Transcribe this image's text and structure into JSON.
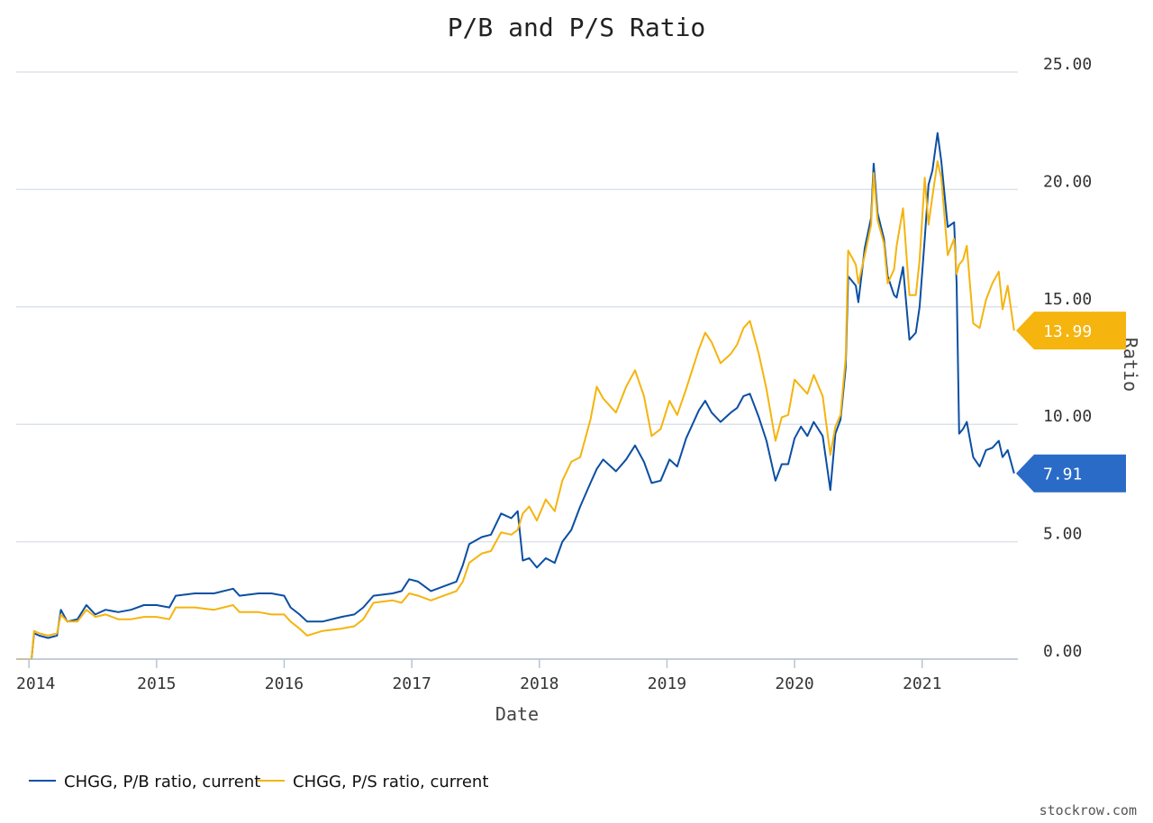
{
  "chart_data": {
    "type": "line",
    "title": "P/B and P/S Ratio",
    "xlabel": "Date",
    "ylabel": "Ratio",
    "ylim": [
      0,
      25
    ],
    "xlim": [
      2013.9,
      2021.75
    ],
    "y_ticks": [
      "0.00",
      "5.00",
      "10.00",
      "15.00",
      "20.00",
      "25.00"
    ],
    "x_ticks": [
      {
        "label": "2014",
        "value": 2014
      },
      {
        "label": "2015",
        "value": 2015
      },
      {
        "label": "2016",
        "value": 2016
      },
      {
        "label": "2017",
        "value": 2017
      },
      {
        "label": "2018",
        "value": 2018
      },
      {
        "label": "2019",
        "value": 2019
      },
      {
        "label": "2020",
        "value": 2020
      },
      {
        "label": "2021",
        "value": 2021
      }
    ],
    "grid": true,
    "legend_position": "bottom-left",
    "series": [
      {
        "name": "CHGG, P/B ratio, current",
        "color": "#0b4fa3",
        "last_label": "7.91",
        "points": [
          [
            2013.9,
            0.0
          ],
          [
            2014.02,
            0.0
          ],
          [
            2014.04,
            1.1
          ],
          [
            2014.08,
            1.0
          ],
          [
            2014.15,
            0.9
          ],
          [
            2014.22,
            1.0
          ],
          [
            2014.25,
            2.1
          ],
          [
            2014.3,
            1.6
          ],
          [
            2014.38,
            1.7
          ],
          [
            2014.45,
            2.3
          ],
          [
            2014.52,
            1.9
          ],
          [
            2014.6,
            2.1
          ],
          [
            2014.7,
            2.0
          ],
          [
            2014.8,
            2.1
          ],
          [
            2014.9,
            2.3
          ],
          [
            2015.0,
            2.3
          ],
          [
            2015.1,
            2.2
          ],
          [
            2015.15,
            2.7
          ],
          [
            2015.3,
            2.8
          ],
          [
            2015.45,
            2.8
          ],
          [
            2015.6,
            3.0
          ],
          [
            2015.65,
            2.7
          ],
          [
            2015.8,
            2.8
          ],
          [
            2015.9,
            2.8
          ],
          [
            2016.0,
            2.7
          ],
          [
            2016.05,
            2.2
          ],
          [
            2016.12,
            1.9
          ],
          [
            2016.18,
            1.6
          ],
          [
            2016.3,
            1.6
          ],
          [
            2016.45,
            1.8
          ],
          [
            2016.55,
            1.9
          ],
          [
            2016.62,
            2.2
          ],
          [
            2016.7,
            2.7
          ],
          [
            2016.85,
            2.8
          ],
          [
            2016.92,
            2.9
          ],
          [
            2016.98,
            3.4
          ],
          [
            2017.05,
            3.3
          ],
          [
            2017.15,
            2.9
          ],
          [
            2017.25,
            3.1
          ],
          [
            2017.35,
            3.3
          ],
          [
            2017.4,
            4.0
          ],
          [
            2017.45,
            4.9
          ],
          [
            2017.55,
            5.2
          ],
          [
            2017.62,
            5.3
          ],
          [
            2017.7,
            6.2
          ],
          [
            2017.78,
            6.0
          ],
          [
            2017.83,
            6.3
          ],
          [
            2017.87,
            4.2
          ],
          [
            2017.92,
            4.3
          ],
          [
            2017.98,
            3.9
          ],
          [
            2018.05,
            4.3
          ],
          [
            2018.12,
            4.1
          ],
          [
            2018.18,
            5.0
          ],
          [
            2018.25,
            5.5
          ],
          [
            2018.32,
            6.5
          ],
          [
            2018.4,
            7.5
          ],
          [
            2018.45,
            8.1
          ],
          [
            2018.5,
            8.5
          ],
          [
            2018.6,
            8.0
          ],
          [
            2018.68,
            8.5
          ],
          [
            2018.75,
            9.1
          ],
          [
            2018.82,
            8.4
          ],
          [
            2018.88,
            7.5
          ],
          [
            2018.95,
            7.6
          ],
          [
            2019.02,
            8.5
          ],
          [
            2019.08,
            8.2
          ],
          [
            2019.15,
            9.4
          ],
          [
            2019.25,
            10.6
          ],
          [
            2019.3,
            11.0
          ],
          [
            2019.35,
            10.5
          ],
          [
            2019.42,
            10.1
          ],
          [
            2019.5,
            10.5
          ],
          [
            2019.55,
            10.7
          ],
          [
            2019.6,
            11.2
          ],
          [
            2019.65,
            11.3
          ],
          [
            2019.72,
            10.3
          ],
          [
            2019.78,
            9.3
          ],
          [
            2019.85,
            7.6
          ],
          [
            2019.9,
            8.3
          ],
          [
            2019.95,
            8.3
          ],
          [
            2020.0,
            9.4
          ],
          [
            2020.05,
            9.9
          ],
          [
            2020.1,
            9.5
          ],
          [
            2020.15,
            10.1
          ],
          [
            2020.22,
            9.5
          ],
          [
            2020.28,
            7.2
          ],
          [
            2020.32,
            9.6
          ],
          [
            2020.36,
            10.2
          ],
          [
            2020.4,
            12.4
          ],
          [
            2020.42,
            16.3
          ],
          [
            2020.48,
            15.9
          ],
          [
            2020.5,
            15.2
          ],
          [
            2020.55,
            17.5
          ],
          [
            2020.6,
            18.8
          ],
          [
            2020.62,
            21.1
          ],
          [
            2020.65,
            19.0
          ],
          [
            2020.7,
            17.9
          ],
          [
            2020.73,
            16.3
          ],
          [
            2020.78,
            15.5
          ],
          [
            2020.8,
            15.4
          ],
          [
            2020.85,
            16.7
          ],
          [
            2020.9,
            13.6
          ],
          [
            2020.95,
            13.9
          ],
          [
            2020.98,
            15.0
          ],
          [
            2021.02,
            17.9
          ],
          [
            2021.05,
            20.2
          ],
          [
            2021.08,
            20.8
          ],
          [
            2021.12,
            22.4
          ],
          [
            2021.15,
            21.2
          ],
          [
            2021.2,
            18.4
          ],
          [
            2021.25,
            18.6
          ],
          [
            2021.27,
            16.0
          ],
          [
            2021.29,
            9.6
          ],
          [
            2021.32,
            9.8
          ],
          [
            2021.35,
            10.1
          ],
          [
            2021.4,
            8.6
          ],
          [
            2021.45,
            8.2
          ],
          [
            2021.5,
            8.9
          ],
          [
            2021.55,
            9.0
          ],
          [
            2021.6,
            9.3
          ],
          [
            2021.63,
            8.6
          ],
          [
            2021.67,
            8.9
          ],
          [
            2021.72,
            7.91
          ]
        ]
      },
      {
        "name": "CHGG, P/S ratio, current",
        "color": "#f5b40e",
        "last_label": "13.99",
        "points": [
          [
            2013.9,
            0.0
          ],
          [
            2014.02,
            0.0
          ],
          [
            2014.04,
            1.2
          ],
          [
            2014.08,
            1.1
          ],
          [
            2014.15,
            1.0
          ],
          [
            2014.22,
            1.1
          ],
          [
            2014.25,
            1.9
          ],
          [
            2014.3,
            1.6
          ],
          [
            2014.38,
            1.6
          ],
          [
            2014.45,
            2.1
          ],
          [
            2014.52,
            1.8
          ],
          [
            2014.6,
            1.9
          ],
          [
            2014.7,
            1.7
          ],
          [
            2014.8,
            1.7
          ],
          [
            2014.9,
            1.8
          ],
          [
            2015.0,
            1.8
          ],
          [
            2015.1,
            1.7
          ],
          [
            2015.15,
            2.2
          ],
          [
            2015.3,
            2.2
          ],
          [
            2015.45,
            2.1
          ],
          [
            2015.6,
            2.3
          ],
          [
            2015.65,
            2.0
          ],
          [
            2015.8,
            2.0
          ],
          [
            2015.9,
            1.9
          ],
          [
            2016.0,
            1.9
          ],
          [
            2016.05,
            1.6
          ],
          [
            2016.12,
            1.3
          ],
          [
            2016.18,
            1.0
          ],
          [
            2016.3,
            1.2
          ],
          [
            2016.45,
            1.3
          ],
          [
            2016.55,
            1.4
          ],
          [
            2016.62,
            1.7
          ],
          [
            2016.7,
            2.4
          ],
          [
            2016.85,
            2.5
          ],
          [
            2016.92,
            2.4
          ],
          [
            2016.98,
            2.8
          ],
          [
            2017.05,
            2.7
          ],
          [
            2017.15,
            2.5
          ],
          [
            2017.25,
            2.7
          ],
          [
            2017.35,
            2.9
          ],
          [
            2017.4,
            3.3
          ],
          [
            2017.45,
            4.1
          ],
          [
            2017.55,
            4.5
          ],
          [
            2017.62,
            4.6
          ],
          [
            2017.7,
            5.4
          ],
          [
            2017.78,
            5.3
          ],
          [
            2017.83,
            5.5
          ],
          [
            2017.87,
            6.2
          ],
          [
            2017.92,
            6.5
          ],
          [
            2017.98,
            5.9
          ],
          [
            2018.05,
            6.8
          ],
          [
            2018.12,
            6.3
          ],
          [
            2018.18,
            7.6
          ],
          [
            2018.25,
            8.4
          ],
          [
            2018.32,
            8.6
          ],
          [
            2018.4,
            10.2
          ],
          [
            2018.45,
            11.6
          ],
          [
            2018.5,
            11.1
          ],
          [
            2018.6,
            10.5
          ],
          [
            2018.68,
            11.6
          ],
          [
            2018.75,
            12.3
          ],
          [
            2018.82,
            11.2
          ],
          [
            2018.88,
            9.5
          ],
          [
            2018.95,
            9.8
          ],
          [
            2019.02,
            11.0
          ],
          [
            2019.08,
            10.4
          ],
          [
            2019.15,
            11.5
          ],
          [
            2019.25,
            13.2
          ],
          [
            2019.3,
            13.9
          ],
          [
            2019.35,
            13.5
          ],
          [
            2019.42,
            12.6
          ],
          [
            2019.5,
            13.0
          ],
          [
            2019.55,
            13.4
          ],
          [
            2019.6,
            14.1
          ],
          [
            2019.65,
            14.4
          ],
          [
            2019.72,
            13.0
          ],
          [
            2019.78,
            11.5
          ],
          [
            2019.85,
            9.3
          ],
          [
            2019.9,
            10.3
          ],
          [
            2019.95,
            10.4
          ],
          [
            2020.0,
            11.9
          ],
          [
            2020.05,
            11.6
          ],
          [
            2020.1,
            11.3
          ],
          [
            2020.15,
            12.1
          ],
          [
            2020.22,
            11.2
          ],
          [
            2020.28,
            8.7
          ],
          [
            2020.32,
            9.9
          ],
          [
            2020.36,
            10.4
          ],
          [
            2020.4,
            12.8
          ],
          [
            2020.42,
            17.4
          ],
          [
            2020.48,
            16.8
          ],
          [
            2020.5,
            16.0
          ],
          [
            2020.55,
            17.2
          ],
          [
            2020.6,
            18.5
          ],
          [
            2020.62,
            20.7
          ],
          [
            2020.65,
            18.7
          ],
          [
            2020.7,
            17.7
          ],
          [
            2020.73,
            16.0
          ],
          [
            2020.78,
            16.6
          ],
          [
            2020.8,
            17.6
          ],
          [
            2020.85,
            19.2
          ],
          [
            2020.9,
            15.5
          ],
          [
            2020.95,
            15.5
          ],
          [
            2020.98,
            17.0
          ],
          [
            2021.02,
            20.5
          ],
          [
            2021.05,
            18.5
          ],
          [
            2021.08,
            19.7
          ],
          [
            2021.12,
            21.2
          ],
          [
            2021.15,
            20.5
          ],
          [
            2021.2,
            17.2
          ],
          [
            2021.25,
            17.9
          ],
          [
            2021.27,
            16.4
          ],
          [
            2021.29,
            16.8
          ],
          [
            2021.32,
            17.0
          ],
          [
            2021.35,
            17.6
          ],
          [
            2021.4,
            14.3
          ],
          [
            2021.45,
            14.1
          ],
          [
            2021.5,
            15.3
          ],
          [
            2021.55,
            16.0
          ],
          [
            2021.6,
            16.5
          ],
          [
            2021.63,
            14.9
          ],
          [
            2021.67,
            15.9
          ],
          [
            2021.72,
            13.99
          ]
        ]
      }
    ]
  },
  "legend": {
    "items": [
      {
        "label": "CHGG, P/B ratio, current",
        "color": "#0b4fa3"
      },
      {
        "label": "CHGG, P/S ratio, current",
        "color": "#f5b40e"
      }
    ]
  },
  "credit": "stockrow.com"
}
